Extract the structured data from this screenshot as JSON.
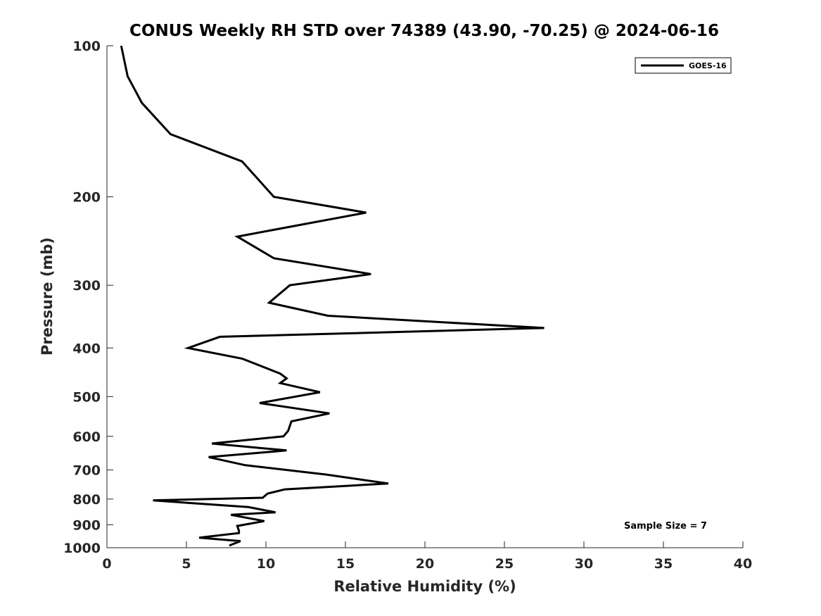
{
  "chart_data": {
    "type": "line",
    "title": "CONUS Weekly RH STD over 74389 (43.90, -70.25) @ 2024-06-16",
    "xlabel": "Relative Humidity (%)",
    "ylabel": "Pressure (mb)",
    "xlim": [
      0,
      40
    ],
    "ylim": [
      100,
      1000
    ],
    "yscale": "log",
    "y_reversed": true,
    "xticks": [
      0,
      5,
      10,
      15,
      20,
      25,
      30,
      35,
      40
    ],
    "xtick_labels": [
      "0",
      "5",
      "10",
      "15",
      "20",
      "25",
      "30",
      "35",
      "40"
    ],
    "yticks": [
      100,
      200,
      300,
      400,
      500,
      600,
      700,
      800,
      900,
      1000
    ],
    "ytick_labels": [
      "100",
      "200",
      "300",
      "400",
      "500",
      "600",
      "700",
      "800",
      "900",
      "1000"
    ],
    "grid": false,
    "legend_position": "top-right",
    "annotation": "Sample Size = 7",
    "series": [
      {
        "name": "GOES-16",
        "color": "#000000",
        "x": [
          0.9,
          1.3,
          2.2,
          4.0,
          8.5,
          10.5,
          16.3,
          8.2,
          10.5,
          16.6,
          11.5,
          10.2,
          13.9,
          27.5,
          7.1,
          5.1,
          8.5,
          10.9,
          11.3,
          10.9,
          13.4,
          9.6,
          14.0,
          11.6,
          11.4,
          11.1,
          6.6,
          11.3,
          6.4,
          8.7,
          13.8,
          17.7,
          11.2,
          10.1,
          9.8,
          2.9,
          8.9,
          10.6,
          7.8,
          9.9,
          8.2,
          8.3,
          8.3,
          5.8,
          8.4,
          7.7
        ],
        "y": [
          100,
          115,
          130,
          150,
          170,
          200,
          215,
          240,
          265,
          285,
          300,
          325,
          345,
          365,
          380,
          400,
          420,
          450,
          460,
          470,
          490,
          515,
          540,
          560,
          585,
          600,
          620,
          640,
          660,
          685,
          715,
          745,
          765,
          780,
          795,
          805,
          830,
          850,
          860,
          885,
          905,
          925,
          935,
          955,
          970,
          990
        ]
      }
    ]
  }
}
